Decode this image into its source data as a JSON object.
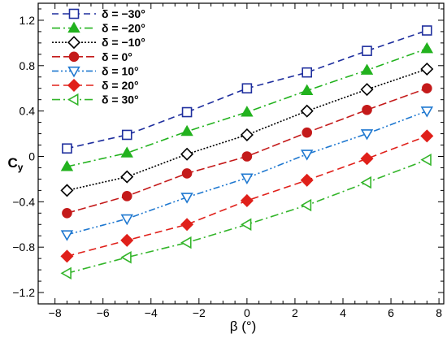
{
  "chart_data": {
    "type": "line",
    "xlabel": "β (°)",
    "ylabel": "C",
    "ylabel_sub": "y",
    "xlim": [
      -8.7,
      8.2
    ],
    "ylim": [
      -1.3,
      1.35
    ],
    "xticks": [
      -8,
      -6,
      -4,
      -2,
      0,
      2,
      4,
      6,
      8
    ],
    "yticks": [
      -1.2,
      -0.8,
      -0.4,
      0,
      0.4,
      0.8,
      1.2
    ],
    "xtick_labels": [
      "−8",
      "−6",
      "−4",
      "−2",
      "0",
      "2",
      "4",
      "6",
      "8"
    ],
    "ytick_labels": [
      "−1.2",
      "−0.8",
      "−0.4",
      "0",
      "0.4",
      "0.8",
      "1.2"
    ],
    "grid": false,
    "legend_position": "top-left",
    "x": [
      -7.5,
      -5,
      -2.5,
      0,
      2.5,
      5,
      7.5
    ],
    "series": [
      {
        "name": "δ = −30°",
        "values": [
          0.07,
          0.19,
          0.39,
          0.6,
          0.74,
          0.93,
          1.11
        ],
        "color": "#1f2f9e",
        "dash": "8,5",
        "marker": "square-open"
      },
      {
        "name": "δ = −20°",
        "values": [
          -0.09,
          0.03,
          0.22,
          0.39,
          0.58,
          0.76,
          0.95
        ],
        "color": "#22b21e",
        "dash": "10,4,2,4",
        "marker": "triangle-up-filled"
      },
      {
        "name": "δ = −10°",
        "values": [
          -0.3,
          -0.18,
          0.02,
          0.19,
          0.4,
          0.59,
          0.77
        ],
        "color": "#000000",
        "dash": "2,2",
        "marker": "diamond-open"
      },
      {
        "name": "δ = 0°",
        "values": [
          -0.5,
          -0.35,
          -0.15,
          0.0,
          0.21,
          0.41,
          0.6
        ],
        "color": "#c41a1a",
        "dash": "10,4",
        "marker": "circle-filled"
      },
      {
        "name": "δ = 10°",
        "values": [
          -0.69,
          -0.55,
          -0.36,
          -0.19,
          0.02,
          0.2,
          0.4
        ],
        "color": "#1f78d0",
        "dash": "8,3,2,3,2,3",
        "marker": "triangle-down-open"
      },
      {
        "name": "δ = 20°",
        "values": [
          -0.88,
          -0.74,
          -0.6,
          -0.39,
          -0.21,
          -0.02,
          0.18
        ],
        "color": "#e0201a",
        "dash": "9,5",
        "marker": "diamond-filled"
      },
      {
        "name": "δ = 30°",
        "values": [
          -1.03,
          -0.89,
          -0.76,
          -0.6,
          -0.43,
          -0.23,
          -0.03
        ],
        "color": "#33b52a",
        "dash": "10,4,2,4",
        "marker": "triangle-left-open"
      }
    ]
  }
}
